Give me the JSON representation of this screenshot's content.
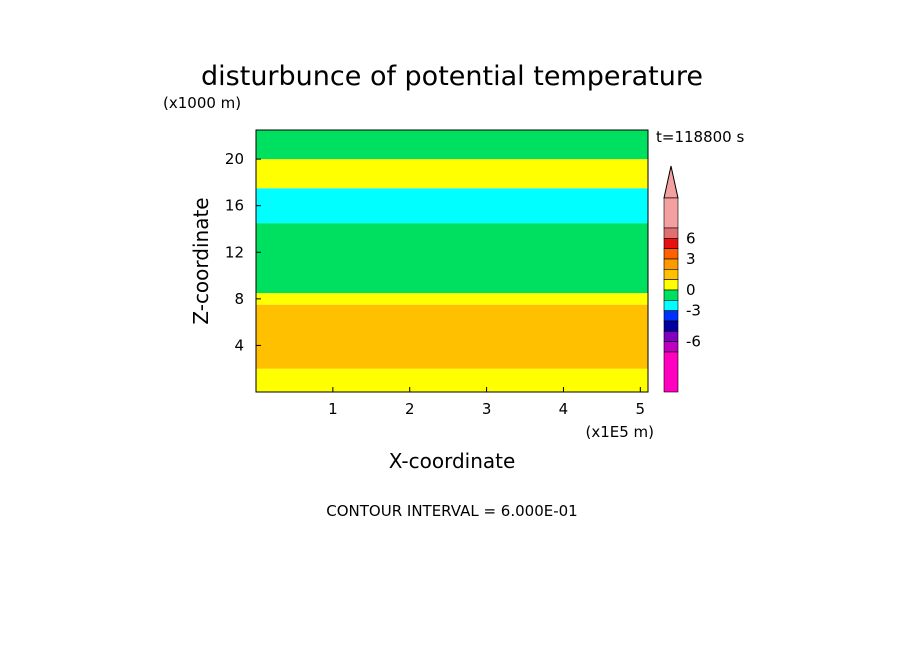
{
  "chart_data": {
    "type": "heatmap",
    "title": "disturbunce of potential temperature",
    "xlabel": "X-coordinate",
    "ylabel": "Z-coordinate",
    "x_unit": "(x1E5 m)",
    "y_unit": "(x1000 m)",
    "time_label": "t=118800 s",
    "contour_interval_label": "CONTOUR INTERVAL = 6.000E-01",
    "xlim": [
      0,
      5.1
    ],
    "ylim": [
      0,
      22.5
    ],
    "x_ticks": [
      1,
      2,
      3,
      4,
      5
    ],
    "x_tick_labels": [
      "1",
      "2",
      "3",
      "4",
      "5"
    ],
    "y_ticks": [
      4,
      8,
      12,
      16,
      20
    ],
    "y_tick_labels": [
      "4",
      "8",
      "12",
      "16",
      "20"
    ],
    "colorbar": {
      "tick_values": [
        6,
        3,
        0,
        -3,
        -6
      ],
      "tick_labels": [
        "6",
        "3",
        "0",
        "-3",
        "-6"
      ],
      "levels": [
        {
          "color": "#f4a0a0",
          "min": 6.6
        },
        {
          "color": "#e07070",
          "min": 6.0,
          "max": 6.6
        },
        {
          "color": "#e81010",
          "min": 4.8,
          "max": 6.0
        },
        {
          "color": "#ff6000",
          "min": 3.6,
          "max": 4.8
        },
        {
          "color": "#ff9900",
          "min": 2.4,
          "max": 3.6
        },
        {
          "color": "#ffc000",
          "min": 1.2,
          "max": 2.4
        },
        {
          "color": "#ffff00",
          "min": 0.0,
          "max": 1.2
        },
        {
          "color": "#00e060",
          "min": -1.2,
          "max": 0.0
        },
        {
          "color": "#00ffff",
          "min": -2.4,
          "max": -1.2
        },
        {
          "color": "#0030ff",
          "min": -3.6,
          "max": -2.4
        },
        {
          "color": "#0000a0",
          "min": -4.8,
          "max": -3.6
        },
        {
          "color": "#8000c0",
          "min": -6.0,
          "max": -4.8
        },
        {
          "color": "#c000c0",
          "min": -6.6,
          "max": -6.0
        },
        {
          "color": "#ff00c0",
          "max": -6.6
        }
      ]
    },
    "field_bands": [
      {
        "z": [
          0,
          2
        ],
        "value": 0.5,
        "color": "#ffff00"
      },
      {
        "z": [
          2,
          7.5
        ],
        "value": 2.0,
        "color": "#ffc000"
      },
      {
        "z": [
          7.5,
          8.5
        ],
        "value": 0.5,
        "color": "#ffff00"
      },
      {
        "z": [
          8.5,
          14.5
        ],
        "value": -0.5,
        "color": "#00e060"
      },
      {
        "z": [
          14.5,
          17.5
        ],
        "value": -1.5,
        "color": "#00ffff"
      },
      {
        "z": [
          17.5,
          20
        ],
        "value": 0.5,
        "color": "#ffff00"
      },
      {
        "z": [
          20,
          22.5
        ],
        "value": -0.5,
        "color": "#00e060"
      }
    ]
  }
}
